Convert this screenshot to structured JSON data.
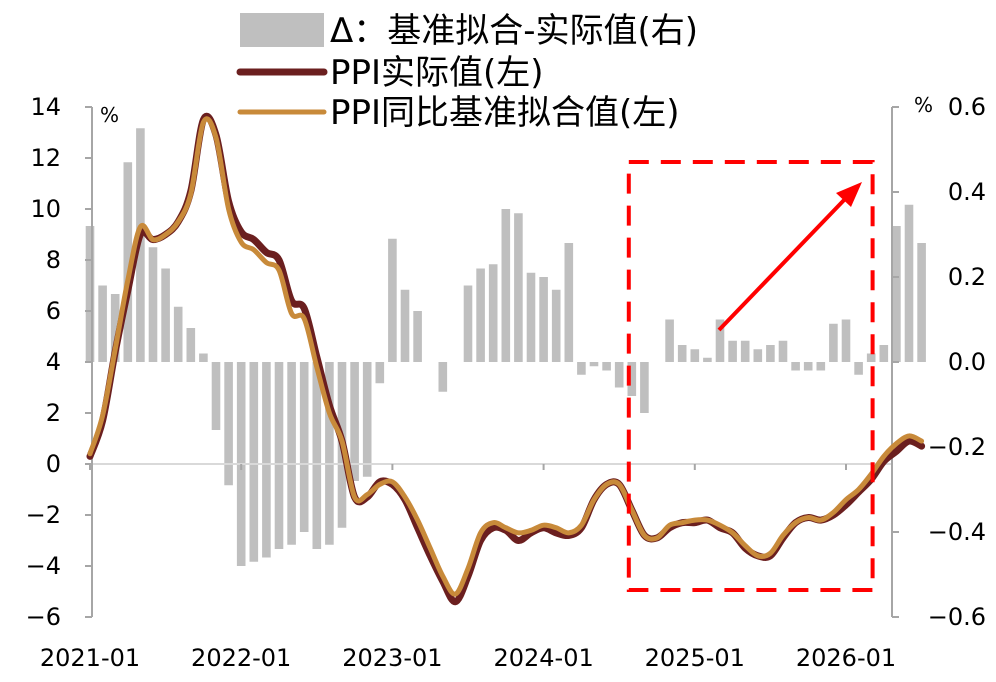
{
  "chart_data": {
    "type": "bar+line",
    "title": "",
    "legend": [
      {
        "key": "diff",
        "label": "Δ：基准拟合-实际值(右)",
        "color": "#bfbfbf"
      },
      {
        "key": "actual",
        "label": "PPI实际值(左)",
        "color": "#6b1f1f"
      },
      {
        "key": "fit",
        "label": "PPI同比基准拟合值(左)",
        "color": "#c88a3a"
      }
    ],
    "left_axis": {
      "unit": "%",
      "min": -6,
      "max": 14,
      "ticks": [
        "14",
        "12",
        "10",
        "8",
        "6",
        "4",
        "2",
        "0",
        "−2",
        "−4",
        "−6"
      ]
    },
    "right_axis": {
      "unit": "%",
      "min": -0.6,
      "max": 0.6,
      "ticks": [
        "0.6",
        "0.4",
        "0.2",
        "0.0",
        "−0.2",
        "−0.4",
        "−0.6"
      ]
    },
    "x_ticks": [
      "2021-01",
      "2022-01",
      "2023-01",
      "2024-01",
      "2025-01",
      "2026-01"
    ],
    "months_start": "2021-01",
    "series": [
      {
        "name": "Δ：基准拟合-实际值(右)",
        "axis": "right",
        "values": [
          0.32,
          0.18,
          0.16,
          0.47,
          0.55,
          0.27,
          0.22,
          0.13,
          0.08,
          0.02,
          -0.16,
          -0.29,
          -0.48,
          -0.47,
          -0.46,
          -0.44,
          -0.43,
          -0.4,
          -0.44,
          -0.43,
          -0.39,
          -0.28,
          -0.27,
          -0.05,
          0.29,
          0.17,
          0.12,
          0.0,
          -0.07,
          0.0,
          0.18,
          0.22,
          0.23,
          0.36,
          0.35,
          0.21,
          0.2,
          0.17,
          0.28,
          -0.03,
          -0.01,
          -0.02,
          -0.06,
          -0.08,
          -0.12,
          0.0,
          0.1,
          0.04,
          0.03,
          0.01,
          0.1,
          0.05,
          0.05,
          0.03,
          0.04,
          0.05,
          -0.02,
          -0.02,
          -0.02,
          0.09,
          0.1,
          -0.03,
          0.02,
          0.04,
          0.32,
          0.37,
          0.28
        ]
      },
      {
        "name": "PPI实际值(左)",
        "axis": "left",
        "values": [
          0.3,
          1.7,
          4.4,
          6.8,
          9.0,
          8.8,
          9.0,
          9.5,
          10.7,
          13.5,
          12.9,
          10.3,
          9.1,
          8.8,
          8.3,
          8.0,
          6.4,
          6.1,
          4.2,
          2.3,
          0.9,
          -1.3,
          -1.3,
          -0.7,
          -0.8,
          -1.4,
          -2.5,
          -3.6,
          -4.6,
          -5.4,
          -4.4,
          -3.0,
          -2.5,
          -2.6,
          -3.0,
          -2.7,
          -2.5,
          -2.7,
          -2.8,
          -2.5,
          -1.4,
          -0.8,
          -0.8,
          -1.8,
          -2.8,
          -2.9,
          -2.5,
          -2.3,
          -2.3,
          -2.2,
          -2.5,
          -2.7,
          -3.3,
          -3.6,
          -3.6,
          -2.9,
          -2.3,
          -2.1,
          -2.2,
          -2.0,
          -1.6,
          -1.1,
          -0.6,
          0.1,
          0.5,
          0.9,
          0.7
        ]
      },
      {
        "name": "PPI同比基准拟合值(左)",
        "axis": "left",
        "values": [
          0.4,
          1.9,
          4.5,
          7.2,
          9.3,
          8.8,
          9.0,
          9.5,
          10.6,
          13.4,
          12.8,
          10.0,
          8.7,
          8.4,
          7.9,
          7.6,
          5.9,
          5.7,
          3.8,
          2.0,
          0.9,
          -1.3,
          -1.2,
          -0.8,
          -0.7,
          -1.3,
          -2.2,
          -3.3,
          -4.4,
          -5.1,
          -4.1,
          -2.7,
          -2.3,
          -2.5,
          -2.7,
          -2.6,
          -2.4,
          -2.5,
          -2.7,
          -2.4,
          -1.4,
          -0.8,
          -0.8,
          -1.8,
          -2.8,
          -2.9,
          -2.4,
          -2.3,
          -2.2,
          -2.2,
          -2.4,
          -2.7,
          -3.2,
          -3.6,
          -3.5,
          -2.8,
          -2.3,
          -2.1,
          -2.2,
          -1.9,
          -1.4,
          -1.0,
          -0.4,
          0.3,
          0.8,
          1.1,
          0.9
        ]
      }
    ],
    "annotation": {
      "type": "dashed-box-with-arrow",
      "color": "#ff0000",
      "from_month": "2024-08",
      "to_month": "2026-02"
    }
  }
}
